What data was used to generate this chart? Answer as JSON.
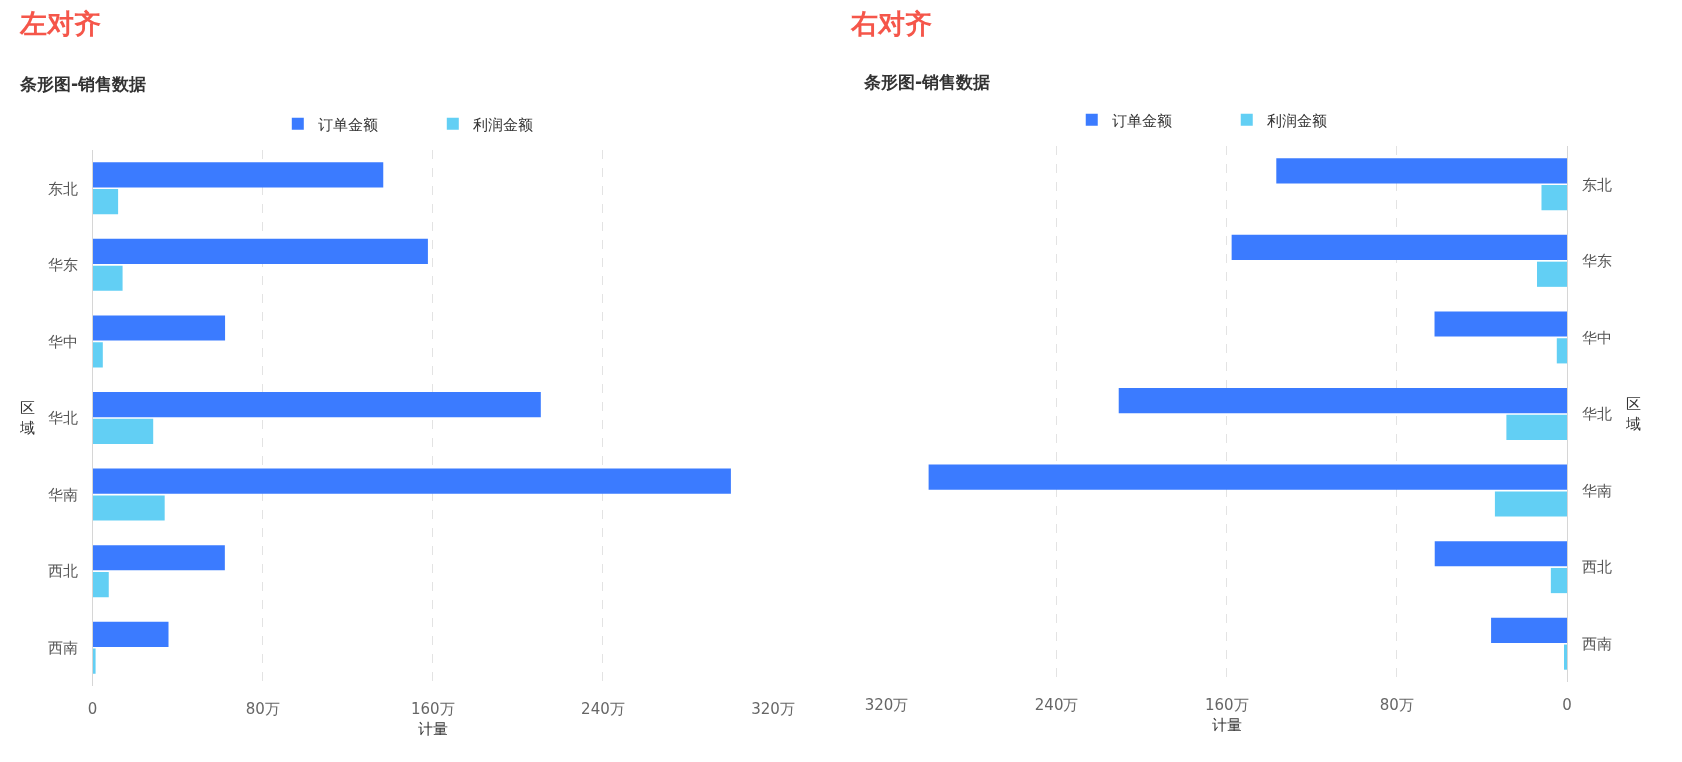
{
  "chart_data": [
    {
      "type": "bar",
      "orientation": "horizontal",
      "title": "条形图-销售数据",
      "annotations": [
        "左对齐"
      ],
      "xlabel": "计量",
      "ylabel": "区域",
      "categories": [
        "东北",
        "华东",
        "华中",
        "华北",
        "华南",
        "西北",
        "西南"
      ],
      "series": [
        {
          "name": "订单金额",
          "color": "#3b7bff",
          "values": [
            136.7,
            157.7,
            62.3,
            210.8,
            300.2,
            62.2,
            35.7
          ]
        },
        {
          "name": "利润金额",
          "color": "#62cff4",
          "values": [
            12.0,
            14.1,
            4.8,
            28.5,
            33.9,
            7.6,
            1.4
          ]
        }
      ],
      "xlim": [
        0,
        320
      ],
      "xticks": [
        0,
        {
          "value": 80,
          "label": "80万"
        },
        {
          "value": 160,
          "label": "160万"
        },
        {
          "value": 240,
          "label": "240万"
        },
        {
          "value": 320,
          "label": "320万"
        }
      ],
      "grid": "x",
      "legend": "top"
    },
    {
      "type": "bar",
      "orientation": "horizontal",
      "title": "条形图-销售数据",
      "annotations": [
        "右对齐"
      ],
      "xlabel": "计量",
      "ylabel": "区域",
      "categories": [
        "东北",
        "华东",
        "华中",
        "华北",
        "华南",
        "西北",
        "西南"
      ],
      "series": [
        {
          "name": "订单金额",
          "color": "#3b7bff",
          "values": [
            136.7,
            157.7,
            62.3,
            210.8,
            300.2,
            62.2,
            35.7
          ]
        },
        {
          "name": "利润金额",
          "color": "#62cff4",
          "values": [
            12.0,
            14.1,
            4.8,
            28.5,
            33.9,
            7.6,
            1.4
          ]
        }
      ],
      "xlim": [
        320,
        0
      ],
      "xticks": [
        0,
        {
          "value": 80,
          "label": "80万"
        },
        {
          "value": 160,
          "label": "160万"
        },
        {
          "value": 240,
          "label": "240万"
        },
        {
          "value": 320,
          "label": "320万"
        }
      ],
      "grid": "x",
      "legend": "top"
    }
  ]
}
